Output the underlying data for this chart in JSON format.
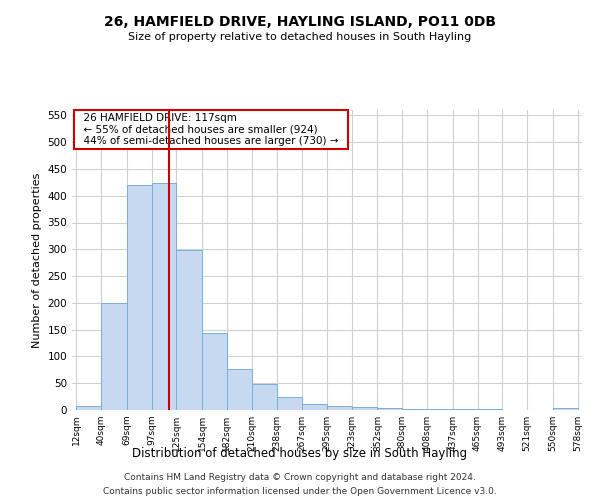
{
  "title": "26, HAMFIELD DRIVE, HAYLING ISLAND, PO11 0DB",
  "subtitle": "Size of property relative to detached houses in South Hayling",
  "xlabel": "Distribution of detached houses by size in South Hayling",
  "ylabel": "Number of detached properties",
  "footer_line1": "Contains HM Land Registry data © Crown copyright and database right 2024.",
  "footer_line2": "Contains public sector information licensed under the Open Government Licence v3.0.",
  "annotation_line1": "26 HAMFIELD DRIVE: 117sqm",
  "annotation_line2": "← 55% of detached houses are smaller (924)",
  "annotation_line3": "44% of semi-detached houses are larger (730) →",
  "bar_edges": [
    12,
    40,
    69,
    97,
    125,
    154,
    182,
    210,
    238,
    267,
    295,
    323,
    352,
    380,
    408,
    437,
    465,
    493,
    521,
    550,
    578
  ],
  "bar_heights": [
    8,
    200,
    420,
    423,
    298,
    143,
    77,
    48,
    24,
    11,
    8,
    6,
    4,
    1,
    1,
    1,
    1,
    0,
    0,
    3
  ],
  "bar_color": "#c6d9f0",
  "bar_edge_color": "#7bafd4",
  "vline_x": 117,
  "vline_color": "#cc0000",
  "ylim": [
    0,
    560
  ],
  "yticks": [
    0,
    50,
    100,
    150,
    200,
    250,
    300,
    350,
    400,
    450,
    500,
    550
  ],
  "annotation_box_color": "#cc0000",
  "background_color": "#ffffff",
  "grid_color": "#d0d0d0"
}
